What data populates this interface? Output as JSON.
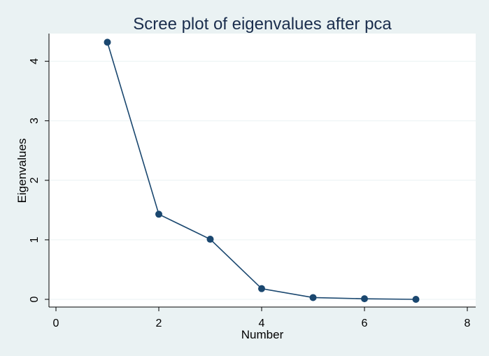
{
  "chart_data": {
    "type": "line",
    "title": "Scree plot of eigenvalues after pca",
    "xlabel": "Number",
    "ylabel": "Eigenvalues",
    "xlim": [
      0,
      8
    ],
    "ylim": [
      0,
      4.45
    ],
    "xticks": [
      0,
      2,
      4,
      6,
      8
    ],
    "yticks": [
      0,
      1,
      2,
      3,
      4
    ],
    "grid": true,
    "x": [
      1,
      2,
      3,
      4,
      5,
      6,
      7
    ],
    "series": [
      {
        "values": [
          4.32,
          1.43,
          1.01,
          0.18,
          0.03,
          0.01,
          0.0
        ]
      }
    ],
    "colors": {
      "background": "#eaf2f3",
      "plot": "#ffffff",
      "line": "#1a476f",
      "marker": "#1a476f",
      "grid": "#eaf2f3",
      "title": "#1a2d4d"
    }
  }
}
